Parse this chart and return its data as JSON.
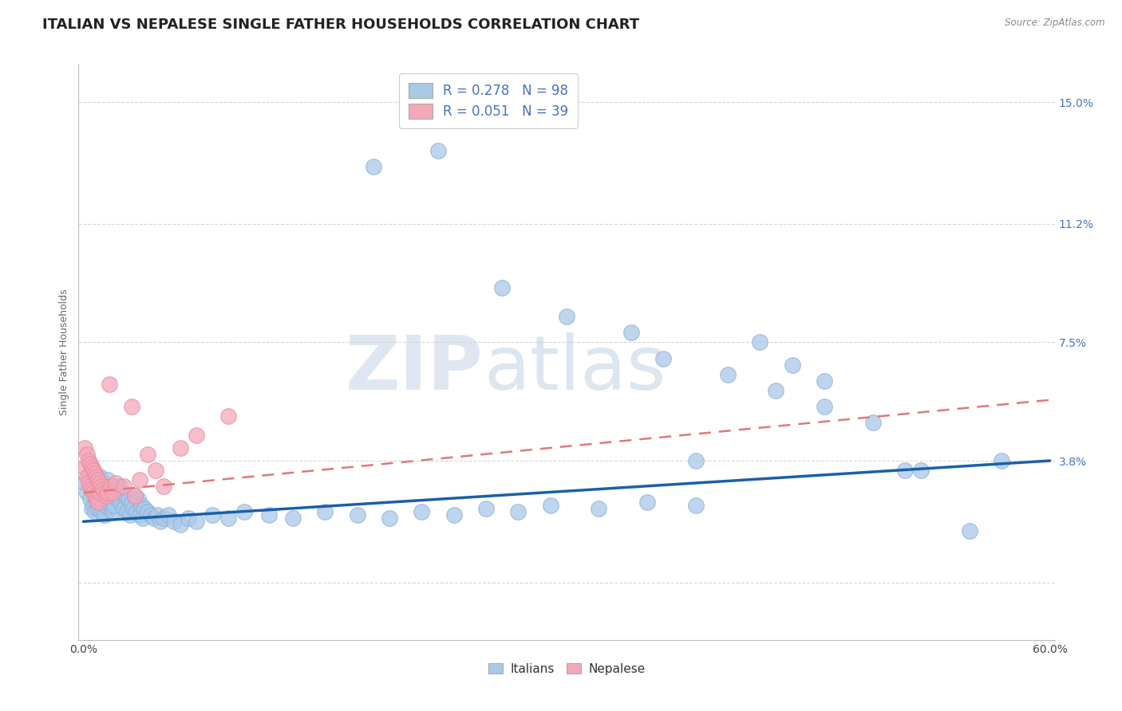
{
  "title": "ITALIAN VS NEPALESE SINGLE FATHER HOUSEHOLDS CORRELATION CHART",
  "source": "Source: ZipAtlas.com",
  "ylabel": "Single Father Households",
  "ytick_vals": [
    0.0,
    0.038,
    0.075,
    0.112,
    0.15
  ],
  "ytick_labels": [
    "",
    "3.8%",
    "7.5%",
    "11.2%",
    "15.0%"
  ],
  "xlim": [
    -0.003,
    0.603
  ],
  "ylim": [
    -0.018,
    0.162
  ],
  "italian_color": "#aac8e8",
  "italian_edge_color": "#88b0d8",
  "nepalese_color": "#f4a8b8",
  "nepalese_edge_color": "#e888a0",
  "italian_line_color": "#1a5fa8",
  "nepalese_line_color": "#e07878",
  "legend_label_1": "R = 0.278   N = 98",
  "legend_label_2": "R = 0.051   N = 39",
  "legend_bottom_1": "Italians",
  "legend_bottom_2": "Nepalese",
  "watermark_zip": "ZIP",
  "watermark_atlas": "atlas",
  "background_color": "#ffffff",
  "grid_color": "#cccccc",
  "title_fontsize": 13,
  "ylabel_fontsize": 9,
  "tick_fontsize": 10,
  "legend_fontsize": 12,
  "italian_scatter_x": [
    0.001,
    0.002,
    0.003,
    0.004,
    0.005,
    0.005,
    0.006,
    0.006,
    0.007,
    0.007,
    0.008,
    0.008,
    0.009,
    0.009,
    0.01,
    0.01,
    0.011,
    0.011,
    0.012,
    0.012,
    0.013,
    0.013,
    0.014,
    0.014,
    0.015,
    0.015,
    0.016,
    0.016,
    0.017,
    0.017,
    0.018,
    0.018,
    0.019,
    0.019,
    0.02,
    0.021,
    0.022,
    0.023,
    0.024,
    0.025,
    0.026,
    0.027,
    0.028,
    0.029,
    0.03,
    0.031,
    0.032,
    0.033,
    0.034,
    0.035,
    0.036,
    0.037,
    0.038,
    0.04,
    0.042,
    0.044,
    0.046,
    0.048,
    0.05,
    0.053,
    0.056,
    0.06,
    0.065,
    0.07,
    0.08,
    0.09,
    0.1,
    0.115,
    0.13,
    0.15,
    0.17,
    0.19,
    0.21,
    0.23,
    0.25,
    0.27,
    0.29,
    0.32,
    0.35,
    0.38,
    0.22,
    0.26,
    0.3,
    0.34,
    0.36,
    0.4,
    0.43,
    0.46,
    0.49,
    0.52,
    0.18,
    0.42,
    0.55,
    0.38,
    0.44,
    0.46,
    0.51,
    0.57
  ],
  "italian_scatter_y": [
    0.031,
    0.028,
    0.033,
    0.026,
    0.03,
    0.023,
    0.029,
    0.024,
    0.027,
    0.022,
    0.031,
    0.025,
    0.029,
    0.023,
    0.033,
    0.025,
    0.028,
    0.022,
    0.03,
    0.024,
    0.027,
    0.021,
    0.029,
    0.024,
    0.032,
    0.025,
    0.028,
    0.023,
    0.03,
    0.024,
    0.027,
    0.022,
    0.029,
    0.024,
    0.028,
    0.026,
    0.03,
    0.025,
    0.028,
    0.023,
    0.027,
    0.022,
    0.026,
    0.021,
    0.025,
    0.023,
    0.027,
    0.022,
    0.026,
    0.021,
    0.024,
    0.02,
    0.023,
    0.022,
    0.021,
    0.02,
    0.021,
    0.019,
    0.02,
    0.021,
    0.019,
    0.018,
    0.02,
    0.019,
    0.021,
    0.02,
    0.022,
    0.021,
    0.02,
    0.022,
    0.021,
    0.02,
    0.022,
    0.021,
    0.023,
    0.022,
    0.024,
    0.023,
    0.025,
    0.024,
    0.135,
    0.092,
    0.083,
    0.078,
    0.07,
    0.065,
    0.06,
    0.055,
    0.05,
    0.035,
    0.13,
    0.075,
    0.016,
    0.038,
    0.068,
    0.063,
    0.035,
    0.038
  ],
  "nepalese_scatter_x": [
    0.001,
    0.001,
    0.002,
    0.002,
    0.003,
    0.003,
    0.004,
    0.004,
    0.005,
    0.005,
    0.006,
    0.006,
    0.007,
    0.007,
    0.008,
    0.008,
    0.009,
    0.009,
    0.01,
    0.01,
    0.011,
    0.012,
    0.013,
    0.014,
    0.015,
    0.016,
    0.017,
    0.018,
    0.02,
    0.025,
    0.03,
    0.032,
    0.035,
    0.04,
    0.045,
    0.05,
    0.06,
    0.07,
    0.09
  ],
  "nepalese_scatter_y": [
    0.042,
    0.036,
    0.04,
    0.033,
    0.038,
    0.031,
    0.037,
    0.03,
    0.036,
    0.029,
    0.035,
    0.028,
    0.034,
    0.027,
    0.033,
    0.026,
    0.032,
    0.025,
    0.031,
    0.028,
    0.03,
    0.029,
    0.028,
    0.027,
    0.028,
    0.062,
    0.03,
    0.028,
    0.031,
    0.03,
    0.055,
    0.027,
    0.032,
    0.04,
    0.035,
    0.03,
    0.042,
    0.046,
    0.052
  ],
  "italian_trend_x0": 0.0,
  "italian_trend_y0": 0.019,
  "italian_trend_x1": 0.6,
  "italian_trend_y1": 0.038,
  "nepalese_trend_x0": 0.0,
  "nepalese_trend_y0": 0.028,
  "nepalese_trend_x1": 0.6,
  "nepalese_trend_y1": 0.057
}
